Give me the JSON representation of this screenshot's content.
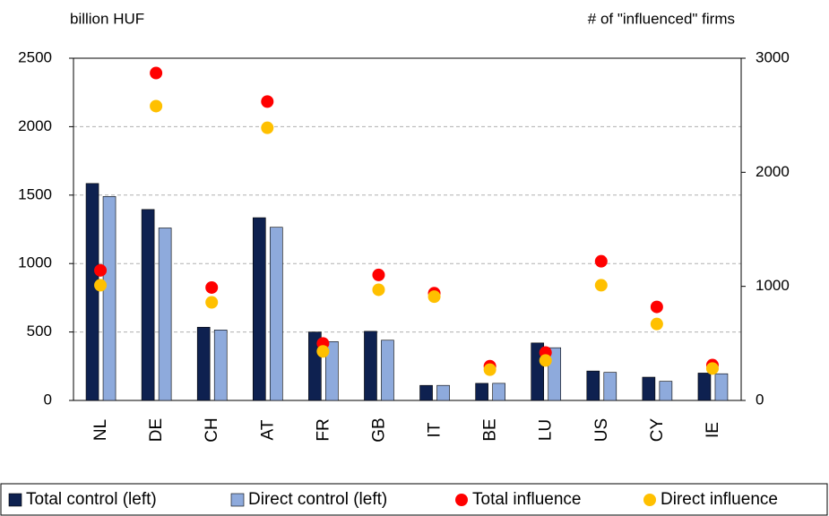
{
  "chart_data": {
    "type": "bar",
    "y_label": "billion HUF",
    "y2_label": "# of \"influenced\" firms",
    "categories": [
      "NL",
      "DE",
      "CH",
      "AT",
      "FR",
      "GB",
      "IT",
      "BE",
      "LU",
      "US",
      "CY",
      "IE"
    ],
    "series": [
      {
        "name": "Total control (left)",
        "type": "bar",
        "color": "#0e2150",
        "values": [
          1585,
          1395,
          535,
          1335,
          500,
          505,
          110,
          125,
          420,
          215,
          170,
          200
        ]
      },
      {
        "name": "Direct control (left)",
        "type": "bar",
        "color": "#8eaadc",
        "values": [
          1490,
          1260,
          515,
          1265,
          430,
          440,
          110,
          125,
          385,
          205,
          140,
          195
        ]
      },
      {
        "name": "Total influence",
        "type": "scatter",
        "axis": "y2",
        "color": "#ff0000",
        "values": [
          1140,
          2870,
          990,
          2620,
          500,
          1100,
          940,
          300,
          420,
          1220,
          820,
          310
        ]
      },
      {
        "name": "Direct influence",
        "type": "scatter",
        "axis": "y2",
        "color": "#ffc000",
        "values": [
          1010,
          2580,
          860,
          2390,
          430,
          970,
          910,
          270,
          350,
          1010,
          670,
          280
        ]
      }
    ],
    "ylim": [
      0,
      2500
    ],
    "yticks": [
      0,
      500,
      1000,
      1500,
      2000,
      2500
    ],
    "y2lim": [
      0,
      3000
    ],
    "y2ticks": [
      0,
      1000,
      2000,
      3000
    ],
    "grid": true,
    "legend": "bottom"
  }
}
